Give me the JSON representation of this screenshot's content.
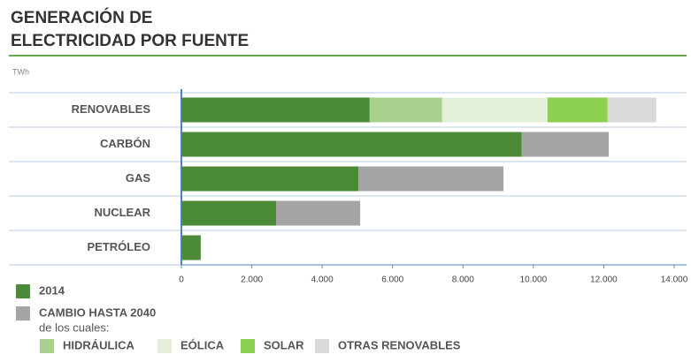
{
  "chart_data": {
    "type": "stacked-horizontal-bar",
    "title": "GENERACIÓN DE\nELECTRICIDAD POR FUENTE",
    "unit_label": "TWh",
    "categories": [
      "RENOVABLES",
      "CARBÓN",
      "GAS",
      "NUCLEAR",
      "PETRÓLEO"
    ],
    "series": [
      {
        "name": "2014",
        "color": "#4b8a36",
        "values": [
          5350,
          9670,
          5030,
          2690,
          550
        ]
      },
      {
        "name": "CAMBIO HASTA 2040",
        "color": "#a5a5a5",
        "values": [
          null,
          2470,
          4120,
          2390,
          0
        ]
      },
      {
        "name": "HIDRÁULICA",
        "color": "#a9d18e",
        "values": [
          2060,
          null,
          null,
          null,
          null
        ]
      },
      {
        "name": "EÓLICA",
        "color": "#e3efd9",
        "values": [
          2990,
          null,
          null,
          null,
          null
        ]
      },
      {
        "name": "SOLAR",
        "color": "#8ed04f",
        "values": [
          1710,
          null,
          null,
          null,
          null
        ]
      },
      {
        "name": "OTRAS RENOVABLES",
        "color": "#d9d9d9",
        "values": [
          1380,
          null,
          null,
          null,
          null
        ]
      }
    ],
    "legend_note": "de los cuales:",
    "xlim": [
      0,
      14000
    ],
    "xticks": [
      0,
      {
        "value": 2000,
        "label": "2.000"
      },
      {
        "value": 4000,
        "label": "4.000"
      },
      {
        "value": 6000,
        "label": "6.000"
      },
      {
        "value": 8000,
        "label": "8.000"
      },
      {
        "value": 10000,
        "label": "10.000"
      },
      {
        "value": 12000,
        "label": "12.000"
      },
      {
        "value": 14000,
        "label": "14.000"
      }
    ]
  }
}
